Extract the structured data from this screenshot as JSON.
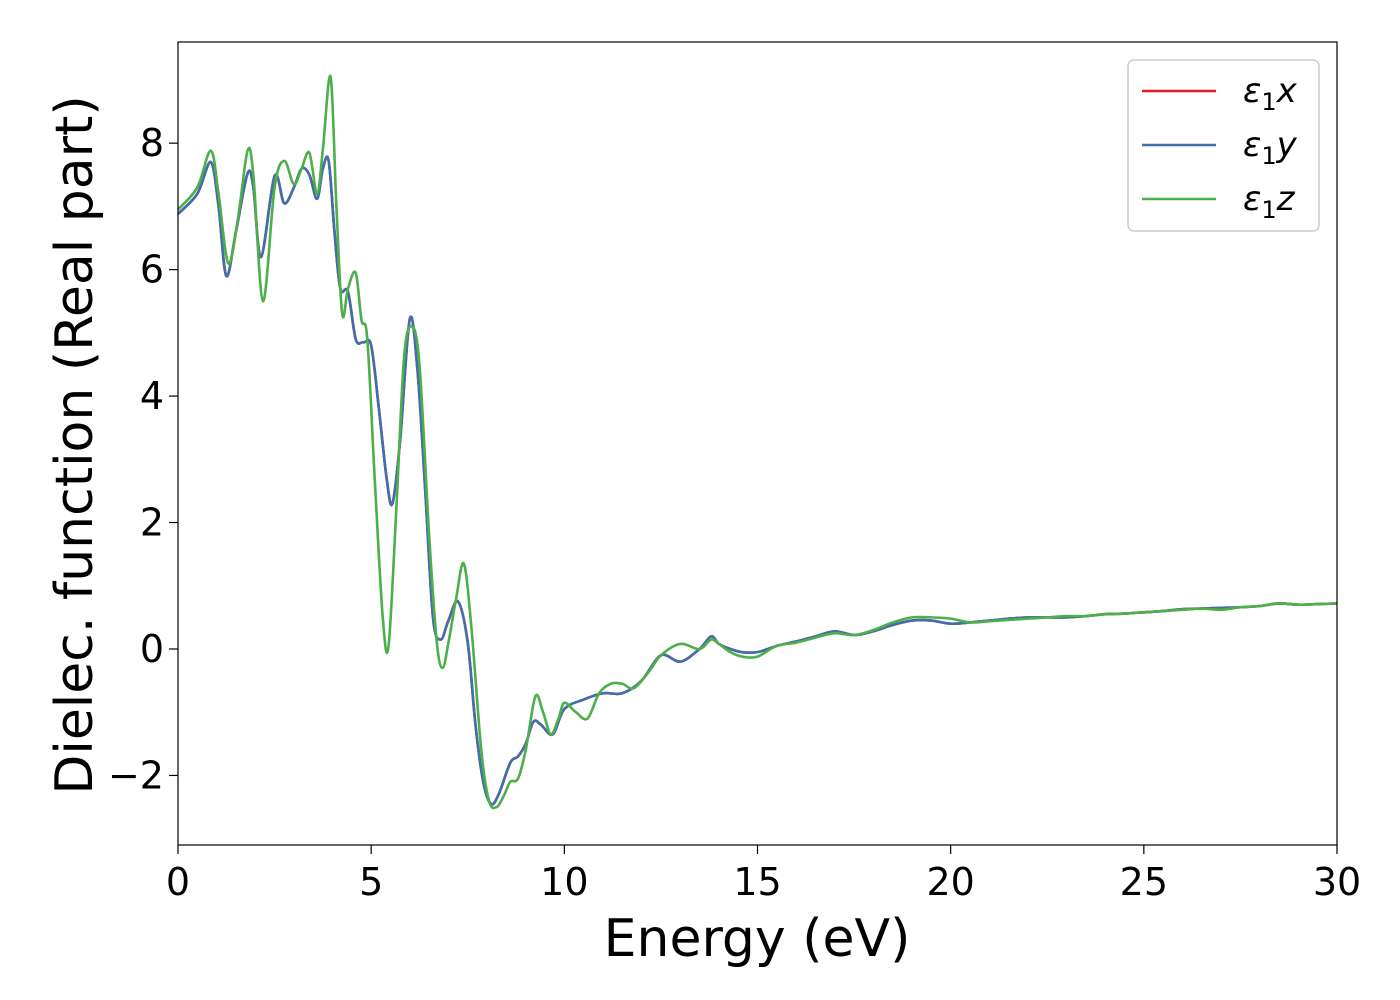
{
  "chart_data": {
    "type": "line",
    "title": "",
    "xlabel": "Energy (eV)",
    "ylabel": "Dielec. function (Real part)",
    "xlim": [
      0,
      30
    ],
    "ylim": [
      -3.1,
      9.6
    ],
    "xticks": [
      0,
      5,
      10,
      15,
      20,
      25,
      30
    ],
    "xtick_labels": [
      "0",
      "5",
      "10",
      "15",
      "20",
      "25",
      "30"
    ],
    "yticks": [
      -2,
      0,
      2,
      4,
      6,
      8
    ],
    "ytick_labels": [
      "−2",
      "0",
      "2",
      "4",
      "6",
      "8"
    ],
    "grid": false,
    "legend_position": "top-right",
    "series": [
      {
        "name": "ε₁x",
        "legend_main": "ε",
        "legend_sub": "1",
        "legend_var": "x",
        "color": "#e41a1c",
        "x": [
          0,
          0.5,
          0.85,
          1.05,
          1.25,
          1.5,
          1.8,
          1.95,
          2.15,
          2.5,
          2.75,
          3.0,
          3.2,
          3.4,
          3.6,
          3.75,
          3.9,
          4.05,
          4.2,
          4.4,
          4.6,
          4.8,
          5.0,
          5.2,
          5.4,
          5.55,
          5.75,
          6.0,
          6.2,
          6.4,
          6.6,
          6.8,
          7.0,
          7.25,
          7.5,
          7.7,
          7.9,
          8.1,
          8.3,
          8.6,
          8.8,
          9.0,
          9.2,
          9.4,
          9.7,
          10.0,
          10.5,
          11.0,
          11.5,
          12.0,
          12.5,
          13.0,
          13.5,
          13.8,
          14.0,
          14.3,
          14.6,
          15.0,
          15.5,
          16.0,
          16.5,
          17.0,
          17.5,
          18.0,
          18.5,
          19.0,
          19.5,
          20.0,
          20.5,
          21.0,
          21.5,
          22.0,
          22.5,
          23.0,
          23.5,
          24.0,
          24.5,
          25.0,
          25.5,
          26.0,
          26.5,
          27.0,
          27.5,
          28.0,
          28.5,
          29.0,
          29.5,
          30.0
        ],
        "y": [
          6.88,
          7.2,
          7.7,
          7.0,
          5.9,
          6.6,
          7.52,
          7.3,
          6.2,
          7.48,
          7.05,
          7.3,
          7.6,
          7.5,
          7.12,
          7.6,
          7.72,
          6.6,
          5.7,
          5.65,
          4.9,
          4.85,
          4.8,
          3.8,
          2.7,
          2.3,
          3.3,
          5.22,
          4.4,
          2.5,
          0.5,
          0.15,
          0.45,
          0.75,
          0.1,
          -1.2,
          -2.1,
          -2.45,
          -2.3,
          -1.8,
          -1.7,
          -1.5,
          -1.15,
          -1.2,
          -1.35,
          -0.95,
          -0.8,
          -0.7,
          -0.7,
          -0.5,
          -0.1,
          -0.2,
          0.0,
          0.2,
          0.08,
          0.0,
          -0.05,
          -0.05,
          0.05,
          0.12,
          0.2,
          0.28,
          0.22,
          0.28,
          0.38,
          0.45,
          0.45,
          0.4,
          0.42,
          0.45,
          0.48,
          0.5,
          0.5,
          0.5,
          0.52,
          0.55,
          0.56,
          0.58,
          0.6,
          0.63,
          0.64,
          0.65,
          0.66,
          0.68,
          0.72,
          0.7,
          0.71,
          0.72
        ]
      },
      {
        "name": "ε₁y",
        "legend_main": "ε",
        "legend_sub": "1",
        "legend_var": "y",
        "color": "#3f6fad",
        "x": [
          0,
          0.5,
          0.85,
          1.05,
          1.25,
          1.5,
          1.8,
          1.95,
          2.15,
          2.5,
          2.75,
          3.0,
          3.2,
          3.4,
          3.6,
          3.75,
          3.9,
          4.05,
          4.2,
          4.4,
          4.6,
          4.8,
          5.0,
          5.2,
          5.4,
          5.55,
          5.75,
          6.0,
          6.2,
          6.4,
          6.6,
          6.8,
          7.0,
          7.25,
          7.5,
          7.7,
          7.9,
          8.1,
          8.3,
          8.6,
          8.8,
          9.0,
          9.2,
          9.4,
          9.7,
          10.0,
          10.5,
          11.0,
          11.5,
          12.0,
          12.5,
          13.0,
          13.5,
          13.8,
          14.0,
          14.3,
          14.6,
          15.0,
          15.5,
          16.0,
          16.5,
          17.0,
          17.5,
          18.0,
          18.5,
          19.0,
          19.5,
          20.0,
          20.5,
          21.0,
          21.5,
          22.0,
          22.5,
          23.0,
          23.5,
          24.0,
          24.5,
          25.0,
          25.5,
          26.0,
          26.5,
          27.0,
          27.5,
          28.0,
          28.5,
          29.0,
          29.5,
          30.0
        ],
        "y": [
          6.88,
          7.2,
          7.7,
          7.0,
          5.9,
          6.6,
          7.52,
          7.3,
          6.2,
          7.48,
          7.05,
          7.3,
          7.6,
          7.5,
          7.12,
          7.6,
          7.72,
          6.6,
          5.7,
          5.65,
          4.9,
          4.85,
          4.8,
          3.8,
          2.7,
          2.3,
          3.3,
          5.22,
          4.4,
          2.5,
          0.5,
          0.15,
          0.45,
          0.75,
          0.1,
          -1.2,
          -2.1,
          -2.45,
          -2.3,
          -1.8,
          -1.7,
          -1.5,
          -1.15,
          -1.2,
          -1.35,
          -0.95,
          -0.8,
          -0.7,
          -0.7,
          -0.5,
          -0.1,
          -0.2,
          0.0,
          0.2,
          0.08,
          0.0,
          -0.05,
          -0.05,
          0.05,
          0.12,
          0.2,
          0.28,
          0.22,
          0.28,
          0.38,
          0.45,
          0.45,
          0.4,
          0.42,
          0.45,
          0.48,
          0.5,
          0.5,
          0.5,
          0.52,
          0.55,
          0.56,
          0.58,
          0.6,
          0.63,
          0.64,
          0.65,
          0.66,
          0.68,
          0.72,
          0.7,
          0.71,
          0.72
        ]
      },
      {
        "name": "ε₁z",
        "legend_main": "ε",
        "legend_sub": "1",
        "legend_var": "z",
        "color": "#4daf4a",
        "x": [
          0,
          0.5,
          0.85,
          1.05,
          1.3,
          1.55,
          1.8,
          1.95,
          2.2,
          2.5,
          2.75,
          3.0,
          3.2,
          3.4,
          3.6,
          3.75,
          3.95,
          4.1,
          4.25,
          4.4,
          4.6,
          4.75,
          4.9,
          5.1,
          5.3,
          5.45,
          5.65,
          5.85,
          6.05,
          6.25,
          6.5,
          6.7,
          6.85,
          7.0,
          7.2,
          7.4,
          7.6,
          7.85,
          8.05,
          8.25,
          8.45,
          8.6,
          8.8,
          9.0,
          9.25,
          9.45,
          9.65,
          9.85,
          10.0,
          10.3,
          10.6,
          10.9,
          11.2,
          11.5,
          11.8,
          12.2,
          12.5,
          13.0,
          13.5,
          13.8,
          14.0,
          14.3,
          14.6,
          15.0,
          15.5,
          16.0,
          16.5,
          17.0,
          17.5,
          18.0,
          18.5,
          19.0,
          19.5,
          20.0,
          20.5,
          21.0,
          21.5,
          22.0,
          22.5,
          23.0,
          23.5,
          24.0,
          24.5,
          25.0,
          25.5,
          26.0,
          26.5,
          27.0,
          27.5,
          28.0,
          28.5,
          29.0,
          29.5,
          30.0
        ],
        "y": [
          6.95,
          7.3,
          7.88,
          7.2,
          6.1,
          6.8,
          7.88,
          7.5,
          5.5,
          7.3,
          7.72,
          7.35,
          7.6,
          7.85,
          7.2,
          7.9,
          9.05,
          7.0,
          5.3,
          5.7,
          5.95,
          5.2,
          4.9,
          2.6,
          0.5,
          0.05,
          2.2,
          4.6,
          5.1,
          4.5,
          1.8,
          0.1,
          -0.3,
          0.1,
          0.8,
          1.35,
          0.3,
          -1.6,
          -2.4,
          -2.5,
          -2.3,
          -2.1,
          -2.05,
          -1.6,
          -0.75,
          -1.0,
          -1.35,
          -1.1,
          -0.85,
          -1.0,
          -1.1,
          -0.7,
          -0.55,
          -0.55,
          -0.62,
          -0.35,
          -0.1,
          0.08,
          0.0,
          0.15,
          0.08,
          -0.05,
          -0.12,
          -0.12,
          0.05,
          0.1,
          0.18,
          0.25,
          0.22,
          0.3,
          0.42,
          0.5,
          0.5,
          0.48,
          0.42,
          0.44,
          0.46,
          0.48,
          0.5,
          0.52,
          0.52,
          0.55,
          0.56,
          0.58,
          0.6,
          0.62,
          0.64,
          0.62,
          0.66,
          0.68,
          0.72,
          0.7,
          0.71,
          0.72
        ]
      }
    ]
  }
}
